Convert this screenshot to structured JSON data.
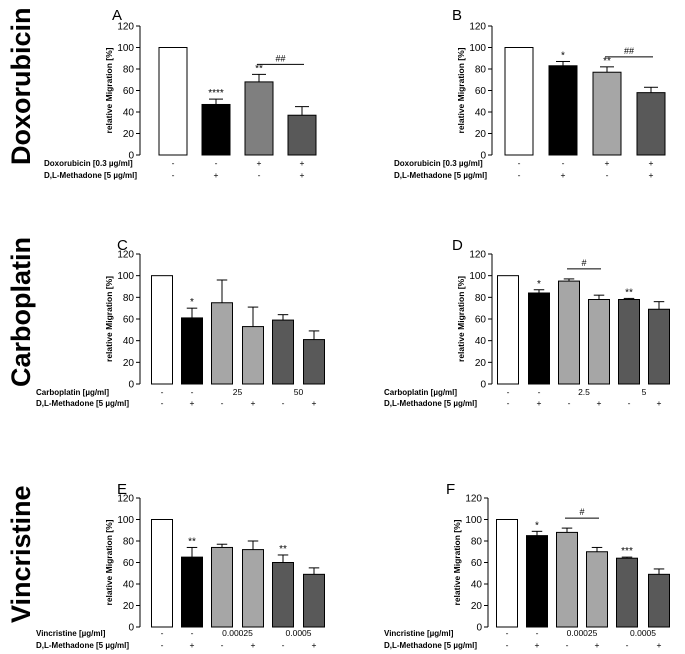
{
  "row_labels": [
    "Doxorubicin",
    "Carboplatin",
    "Vincristine"
  ],
  "colors": {
    "white": "#ffffff",
    "black": "#000000",
    "gray_mid": "#7f7f7f",
    "gray_light": "#a6a6a6",
    "gray_dark": "#595959"
  },
  "chart_data": [
    {
      "panel": "A",
      "type": "bar",
      "ylabel": "relative Migration [%]",
      "ylim": [
        0,
        120
      ],
      "yticks": [
        "0",
        "20",
        "40",
        "60",
        "80",
        "100",
        "120"
      ],
      "values": [
        100,
        47,
        68,
        37
      ],
      "errors": [
        0,
        5,
        7,
        8
      ],
      "colors": [
        "#ffffff",
        "#000000",
        "#7f7f7f",
        "#595959"
      ],
      "stars": [
        "",
        "****",
        "**",
        ""
      ],
      "brackets": [
        {
          "from": 2,
          "to": 3,
          "label": "##"
        }
      ],
      "conditions": [
        {
          "label": "Doxorubicin [0.3 µg/ml]",
          "values": [
            "-",
            "-",
            "+",
            "+"
          ]
        },
        {
          "label": "D,L-Methadone [5 µg/ml]",
          "values": [
            "-",
            "+",
            "-",
            "+"
          ]
        }
      ]
    },
    {
      "panel": "B",
      "type": "bar",
      "ylabel": "relative Migration [%]",
      "ylim": [
        0,
        120
      ],
      "yticks": [
        "0",
        "20",
        "40",
        "60",
        "80",
        "100",
        "120"
      ],
      "values": [
        100,
        83,
        77,
        58
      ],
      "errors": [
        0,
        4,
        5,
        5
      ],
      "colors": [
        "#ffffff",
        "#000000",
        "#a6a6a6",
        "#595959"
      ],
      "stars": [
        "",
        "*",
        "**",
        ""
      ],
      "brackets": [
        {
          "from": 2,
          "to": 3,
          "label": "##"
        }
      ],
      "conditions": [
        {
          "label": "Doxorubicin [0.3 µg/ml]",
          "values": [
            "-",
            "-",
            "+",
            "+"
          ]
        },
        {
          "label": "D,L-Methadone [5 µg/ml]",
          "values": [
            "-",
            "+",
            "-",
            "+"
          ]
        }
      ]
    },
    {
      "panel": "C",
      "type": "bar",
      "ylabel": "relative Migration [%]",
      "ylim": [
        0,
        120
      ],
      "yticks": [
        "0",
        "20",
        "40",
        "60",
        "80",
        "100",
        "120"
      ],
      "values": [
        100,
        61,
        75,
        53,
        59,
        41
      ],
      "errors": [
        0,
        9,
        21,
        18,
        5,
        8
      ],
      "colors": [
        "#ffffff",
        "#000000",
        "#a6a6a6",
        "#a6a6a6",
        "#595959",
        "#595959"
      ],
      "stars": [
        "",
        "*",
        "",
        "",
        "",
        ""
      ],
      "brackets": [],
      "conditions": [
        {
          "label": "Carboplatin [µg/ml]",
          "values": [
            "-",
            "-",
            "25",
            "50"
          ],
          "groups": [
            [
              0
            ],
            [
              1
            ],
            [
              2,
              3
            ],
            [
              4,
              5
            ]
          ]
        },
        {
          "label": "D,L-Methadone [5 µg/ml]",
          "values": [
            "-",
            "+",
            "-",
            "+",
            "-",
            "+"
          ]
        }
      ]
    },
    {
      "panel": "D",
      "type": "bar",
      "ylabel": "relative Migration [%]",
      "ylim": [
        0,
        120
      ],
      "yticks": [
        "0",
        "20",
        "40",
        "60",
        "80",
        "100",
        "120"
      ],
      "values": [
        100,
        84,
        95,
        78,
        78,
        69
      ],
      "errors": [
        0,
        3,
        2,
        4,
        1,
        7
      ],
      "colors": [
        "#ffffff",
        "#000000",
        "#a6a6a6",
        "#a6a6a6",
        "#595959",
        "#595959"
      ],
      "stars": [
        "",
        "*",
        "",
        "",
        "**",
        ""
      ],
      "brackets": [
        {
          "from": 2,
          "to": 3,
          "label": "#"
        }
      ],
      "conditions": [
        {
          "label": "Carboplatin [µg/ml]",
          "values": [
            "-",
            "-",
            "2.5",
            "5"
          ],
          "groups": [
            [
              0
            ],
            [
              1
            ],
            [
              2,
              3
            ],
            [
              4,
              5
            ]
          ]
        },
        {
          "label": "D,L-Methadone [5 µg/ml]",
          "values": [
            "-",
            "+",
            "-",
            "+",
            "-",
            "+"
          ]
        }
      ]
    },
    {
      "panel": "E",
      "type": "bar",
      "ylabel": "relative Migration [%]",
      "ylim": [
        0,
        120
      ],
      "yticks": [
        "0",
        "20",
        "40",
        "60",
        "80",
        "100",
        "120"
      ],
      "values": [
        100,
        65,
        74,
        72,
        60,
        49
      ],
      "errors": [
        0,
        9,
        3,
        8,
        7,
        6
      ],
      "colors": [
        "#ffffff",
        "#000000",
        "#a6a6a6",
        "#a6a6a6",
        "#595959",
        "#595959"
      ],
      "stars": [
        "",
        "**",
        "",
        "",
        "**",
        ""
      ],
      "brackets": [],
      "conditions": [
        {
          "label": "Vincristine [µg/ml]",
          "values": [
            "-",
            "-",
            "0.00025",
            "0.0005"
          ],
          "groups": [
            [
              0
            ],
            [
              1
            ],
            [
              2,
              3
            ],
            [
              4,
              5
            ]
          ]
        },
        {
          "label": "D,L-Methadone [5 µg/ml]",
          "values": [
            "-",
            "+",
            "-",
            "+",
            "-",
            "+"
          ]
        }
      ]
    },
    {
      "panel": "F",
      "type": "bar",
      "ylabel": "relative Migration [%]",
      "ylim": [
        0,
        120
      ],
      "yticks": [
        "0",
        "20",
        "40",
        "60",
        "80",
        "100",
        "120"
      ],
      "values": [
        100,
        85,
        88,
        70,
        64,
        49
      ],
      "errors": [
        0,
        4,
        4,
        4,
        1,
        5
      ],
      "colors": [
        "#ffffff",
        "#000000",
        "#a6a6a6",
        "#a6a6a6",
        "#595959",
        "#595959"
      ],
      "stars": [
        "",
        "*",
        "",
        "",
        "***",
        ""
      ],
      "brackets": [
        {
          "from": 2,
          "to": 3,
          "label": "#"
        }
      ],
      "conditions": [
        {
          "label": "Vincristine [µg/ml]",
          "values": [
            "-",
            "-",
            "0.00025",
            "0.0005"
          ],
          "groups": [
            [
              0
            ],
            [
              1
            ],
            [
              2,
              3
            ],
            [
              4,
              5
            ]
          ]
        },
        {
          "label": "D,L-Methadone [5 µg/ml]",
          "values": [
            "-",
            "+",
            "-",
            "+",
            "-",
            "+"
          ]
        }
      ]
    }
  ]
}
